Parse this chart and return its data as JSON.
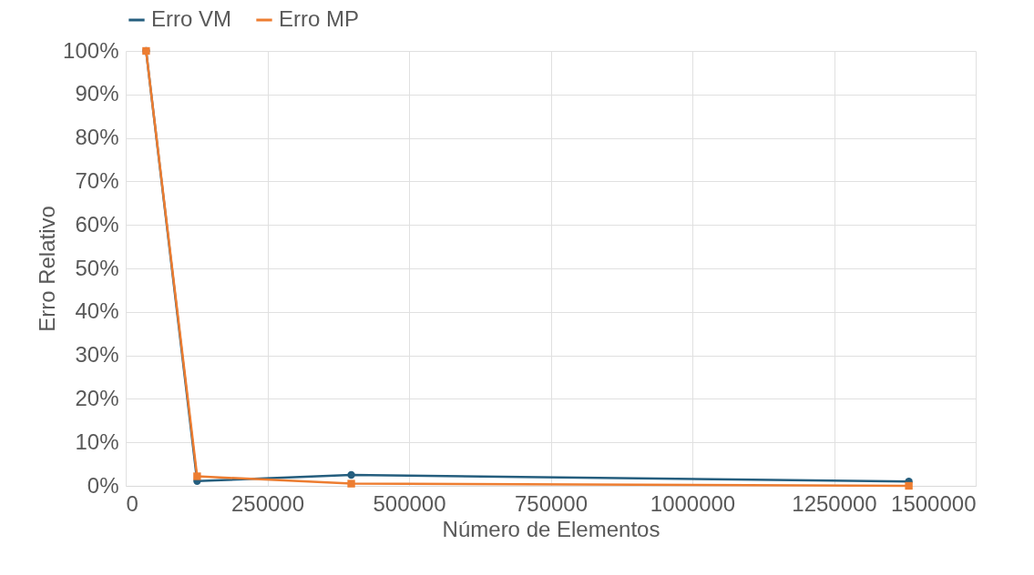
{
  "chart_data": {
    "type": "line",
    "xlabel": "Número de Elementos",
    "ylabel": "Erro Relativo",
    "x": [
      36000,
      126000,
      398000,
      1382000
    ],
    "series": [
      {
        "name": "Erro VM",
        "color": "#255e7e",
        "marker": "circle",
        "values": [
          100,
          1.1,
          2.5,
          1.0
        ]
      },
      {
        "name": "Erro MP",
        "color": "#ed7d31",
        "marker": "square",
        "values": [
          100,
          2.2,
          0.5,
          0
        ]
      }
    ],
    "xlim": [
      0,
      1500000
    ],
    "xticks": [
      0,
      250000,
      500000,
      750000,
      1000000,
      1250000,
      1500000
    ],
    "ylim": [
      0,
      100
    ],
    "yticks": [
      {
        "value": 0,
        "label": "0%"
      },
      {
        "value": 10,
        "label": "10%"
      },
      {
        "value": 20,
        "label": "20%"
      },
      {
        "value": 30,
        "label": "30%"
      },
      {
        "value": 40,
        "label": "40%"
      },
      {
        "value": 50,
        "label": "50%"
      },
      {
        "value": 60,
        "label": "60%"
      },
      {
        "value": 70,
        "label": "70%"
      },
      {
        "value": 80,
        "label": "80%"
      },
      {
        "value": 90,
        "label": "90%"
      },
      {
        "value": 100,
        "label": "100%"
      }
    ],
    "grid": true,
    "legend": "top"
  }
}
